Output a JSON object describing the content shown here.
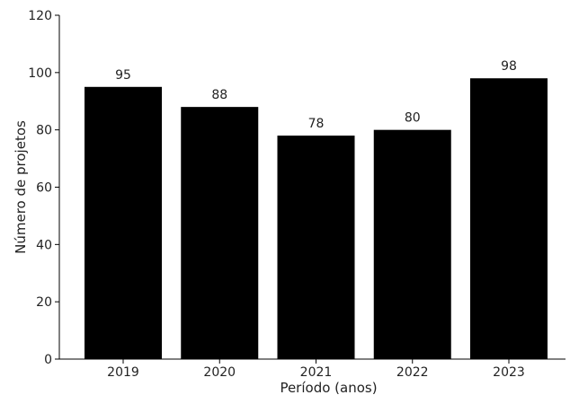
{
  "chart_data": {
    "type": "bar",
    "title": "",
    "xlabel": "Período (anos)",
    "ylabel": "Número de projetos",
    "categories": [
      "2019",
      "2020",
      "2021",
      "2022",
      "2023"
    ],
    "values": [
      95,
      88,
      78,
      80,
      98
    ],
    "ylim": [
      0,
      120
    ],
    "yticks": [
      0,
      20,
      40,
      60,
      80,
      100,
      120
    ],
    "show_value_labels": true,
    "grid": false,
    "legend": "none",
    "bar_color": "#000000"
  }
}
